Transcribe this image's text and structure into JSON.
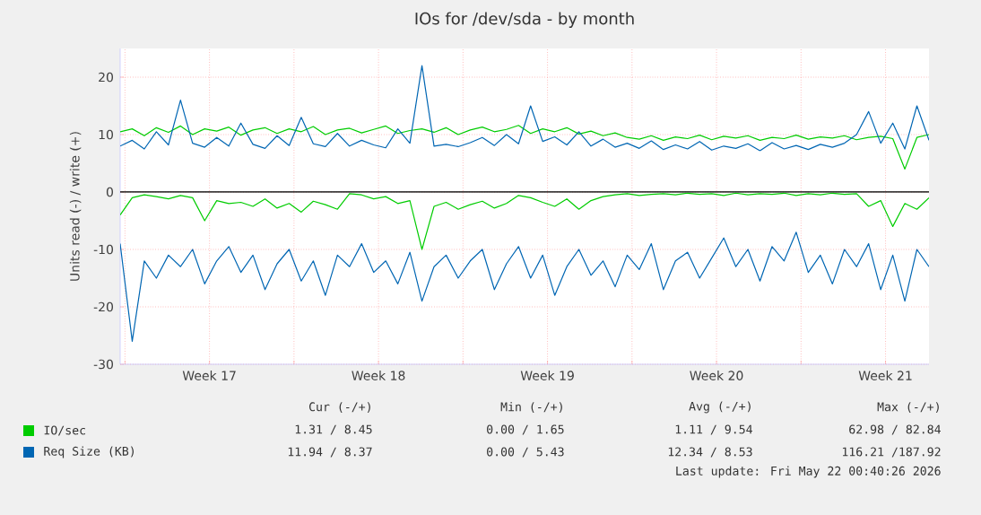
{
  "chart_data": {
    "type": "line",
    "title": "IOs for /dev/sda - by month",
    "ylabel": "Units read (-) / write (+)",
    "x": [
      "2026-04-19T19:12",
      "2026-04-20T07:12",
      "2026-04-20T19:12",
      "2026-04-21T07:12",
      "2026-04-21T19:12",
      "2026-04-22T07:12",
      "2026-04-22T19:12",
      "2026-04-23T07:12",
      "2026-04-23T19:12",
      "2026-04-24T07:12",
      "2026-04-24T19:12",
      "2026-04-25T07:12",
      "2026-04-25T19:12",
      "2026-04-26T07:12",
      "2026-04-26T19:12",
      "2026-04-27T07:12",
      "2026-04-27T19:12",
      "2026-04-28T07:12",
      "2026-04-28T19:12",
      "2026-04-29T07:12",
      "2026-04-29T19:12",
      "2026-04-30T07:12",
      "2026-04-30T19:12",
      "2026-05-01T07:12",
      "2026-05-01T19:12",
      "2026-05-02T07:12",
      "2026-05-02T19:12",
      "2026-05-03T07:12",
      "2026-05-03T19:12",
      "2026-05-04T07:12",
      "2026-05-04T19:12",
      "2026-05-05T07:12",
      "2026-05-05T19:12",
      "2026-05-06T07:12",
      "2026-05-06T19:12",
      "2026-05-07T07:12",
      "2026-05-07T19:12",
      "2026-05-08T07:12",
      "2026-05-08T19:12",
      "2026-05-09T07:12",
      "2026-05-09T19:12",
      "2026-05-10T07:12",
      "2026-05-10T19:12",
      "2026-05-11T07:12",
      "2026-05-11T19:12",
      "2026-05-12T07:12",
      "2026-05-12T19:12",
      "2026-05-13T07:12",
      "2026-05-13T19:12",
      "2026-05-14T07:12",
      "2026-05-14T19:12",
      "2026-05-15T07:12",
      "2026-05-15T19:12",
      "2026-05-16T07:12",
      "2026-05-16T19:12",
      "2026-05-17T07:12",
      "2026-05-17T19:12",
      "2026-05-18T07:12",
      "2026-05-18T19:12",
      "2026-05-19T07:12",
      "2026-05-19T19:12",
      "2026-05-20T07:12",
      "2026-05-20T19:12",
      "2026-05-21T07:12",
      "2026-05-21T19:12",
      "2026-05-22T07:12",
      "2026-05-22T19:12",
      "2026-05-23T07:12"
    ],
    "xlim": [
      "2026-04-19T19:12",
      "2026-05-23T07:12"
    ],
    "xticks": [
      {
        "value": "2026-04-20",
        "label": null
      },
      {
        "value": "2026-04-23T12:00",
        "label": "Week 17"
      },
      {
        "value": "2026-04-27",
        "label": null
      },
      {
        "value": "2026-04-30T12:00",
        "label": "Week 18"
      },
      {
        "value": "2026-05-04",
        "label": null
      },
      {
        "value": "2026-05-07T12:00",
        "label": "Week 19"
      },
      {
        "value": "2026-05-11",
        "label": null
      },
      {
        "value": "2026-05-14T12:00",
        "label": "Week 20"
      },
      {
        "value": "2026-05-18",
        "label": null
      },
      {
        "value": "2026-05-21T12:00",
        "label": "Week 21"
      }
    ],
    "ylim": [
      -30,
      25
    ],
    "yticks": [
      -30,
      -20,
      -10,
      0,
      10,
      20
    ],
    "grid": true,
    "legend": "bottom",
    "ref_lines": [
      {
        "axis": "y",
        "value": 0,
        "color": "#000000"
      }
    ],
    "series": [
      {
        "name": "IO/sec",
        "color": "#00cc00",
        "values": [
          10.5,
          11.0,
          9.8,
          11.2,
          10.4,
          11.5,
          10.0,
          11.0,
          10.6,
          11.3,
          9.9,
          10.8,
          11.2,
          10.2,
          11.0,
          10.5,
          11.4,
          10.0,
          10.8,
          11.1,
          10.3,
          10.9,
          11.5,
          10.2,
          10.7,
          11.0,
          10.4,
          11.2,
          10.0,
          10.8,
          11.3,
          10.5,
          10.9,
          11.6,
          10.2,
          11.0,
          10.5,
          11.2,
          10.1,
          10.6,
          9.8,
          10.3,
          9.5,
          9.2,
          9.8,
          9.0,
          9.6,
          9.3,
          9.9,
          9.1,
          9.7,
          9.4,
          9.8,
          9.0,
          9.5,
          9.3,
          9.9,
          9.2,
          9.6,
          9.4,
          9.8,
          9.1,
          9.5,
          9.7,
          9.3,
          4.0,
          9.5,
          10.0
        ]
      },
      {
        "color": "#00cc00",
        "values": [
          -4.0,
          -1.0,
          -0.5,
          -0.8,
          -1.2,
          -0.6,
          -1.0,
          -5.0,
          -1.5,
          -2.0,
          -1.8,
          -2.5,
          -1.2,
          -2.8,
          -2.0,
          -3.5,
          -1.6,
          -2.2,
          -3.0,
          -0.3,
          -0.5,
          -1.2,
          -0.8,
          -2.0,
          -1.5,
          -10.0,
          -2.5,
          -1.8,
          -3.0,
          -2.2,
          -1.6,
          -2.8,
          -2.0,
          -0.6,
          -1.0,
          -1.8,
          -2.5,
          -1.2,
          -3.0,
          -1.5,
          -0.8,
          -0.5,
          -0.3,
          -0.6,
          -0.4,
          -0.3,
          -0.5,
          -0.2,
          -0.4,
          -0.3,
          -0.6,
          -0.2,
          -0.5,
          -0.3,
          -0.4,
          -0.2,
          -0.6,
          -0.3,
          -0.5,
          -0.2,
          -0.4,
          -0.3,
          -2.5,
          -1.5,
          -6.0,
          -2.0,
          -3.0,
          -1.0
        ]
      },
      {
        "name": "Req Size (KB)",
        "color": "#0066b3",
        "values": [
          8.0,
          9.0,
          7.5,
          10.5,
          8.2,
          16.0,
          8.5,
          7.8,
          9.5,
          8.0,
          12.0,
          8.3,
          7.6,
          9.8,
          8.1,
          13.0,
          8.4,
          7.9,
          10.2,
          8.0,
          9.0,
          8.2,
          7.7,
          11.0,
          8.5,
          22.0,
          8.0,
          8.3,
          7.9,
          8.6,
          9.5,
          8.1,
          10.0,
          8.4,
          15.0,
          8.8,
          9.6,
          8.2,
          10.5,
          8.0,
          9.2,
          7.8,
          8.5,
          7.6,
          8.9,
          7.4,
          8.2,
          7.5,
          8.8,
          7.3,
          8.0,
          7.6,
          8.4,
          7.2,
          8.6,
          7.5,
          8.1,
          7.4,
          8.3,
          7.8,
          8.5,
          10.0,
          14.0,
          8.5,
          12.0,
          7.5,
          15.0,
          9.0
        ]
      },
      {
        "color": "#0066b3",
        "values": [
          -9.0,
          -26.0,
          -12.0,
          -15.0,
          -11.0,
          -13.0,
          -10.0,
          -16.0,
          -12.0,
          -9.5,
          -14.0,
          -11.0,
          -17.0,
          -12.5,
          -10.0,
          -15.5,
          -12.0,
          -18.0,
          -11.0,
          -13.0,
          -9.0,
          -14.0,
          -12.0,
          -16.0,
          -10.5,
          -19.0,
          -13.0,
          -11.0,
          -15.0,
          -12.0,
          -10.0,
          -17.0,
          -12.5,
          -9.5,
          -15.0,
          -11.0,
          -18.0,
          -13.0,
          -10.0,
          -14.5,
          -12.0,
          -16.5,
          -11.0,
          -13.5,
          -9.0,
          -17.0,
          -12.0,
          -10.5,
          -15.0,
          -11.5,
          -8.0,
          -13.0,
          -10.0,
          -15.5,
          -9.5,
          -12.0,
          -7.0,
          -14.0,
          -11.0,
          -16.0,
          -10.0,
          -13.0,
          -9.0,
          -17.0,
          -11.0,
          -19.0,
          -10.0,
          -13.0
        ]
      }
    ],
    "annotations": [
      "Cur (-/+)",
      "Min (-/+)",
      "Avg (-/+)",
      "Max (-/+)",
      "1.31 /  8.45",
      "0.00 /  1.65",
      "1.11 /  9.54",
      "62.98 / 82.84",
      "11.94 /  8.37",
      "0.00 /  5.43",
      "12.34 /  8.53",
      "116.21 /187.92",
      "Last update: Fri May 22 00:40:26 2026"
    ]
  }
}
